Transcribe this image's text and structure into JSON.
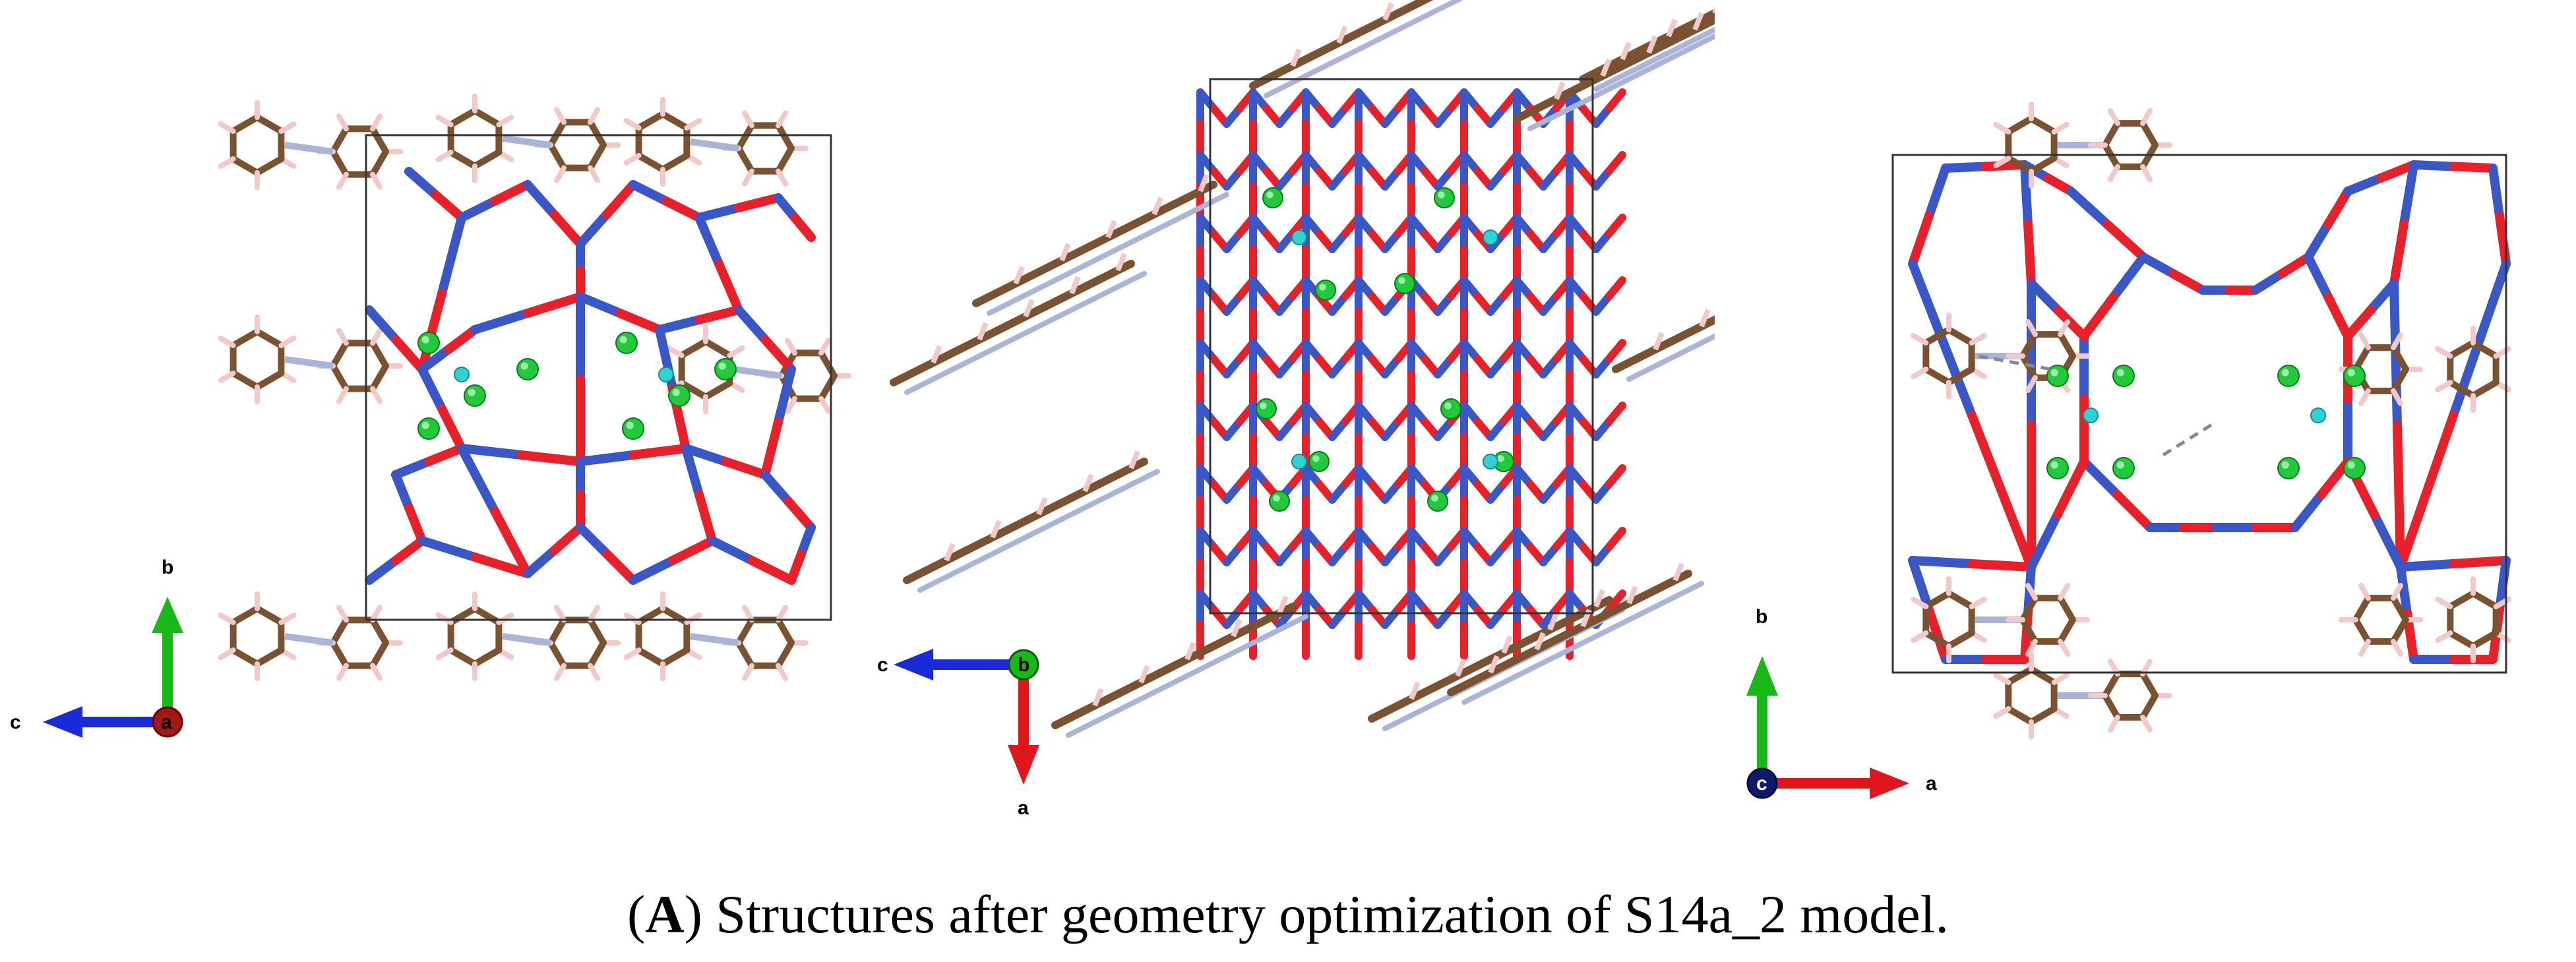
{
  "figure": {
    "caption_label": "A",
    "caption_text": "Structures after geometry optimization of S14a_2 model."
  },
  "panels": [
    {
      "id": "panel-1",
      "axes": {
        "up": "b",
        "left": "c",
        "center": "a"
      }
    },
    {
      "id": "panel-2",
      "axes": {
        "left": "c",
        "down": "a",
        "center": "b"
      }
    },
    {
      "id": "panel-3",
      "axes": {
        "up": "b",
        "right": "a",
        "center": "c"
      }
    }
  ],
  "colors": {
    "oxygen": "#e8202a",
    "aluminum": "#3a57c8",
    "silicon_ball": "#22c93a",
    "cation": "#2fd3d3",
    "carbon": "#7a5230",
    "hydrogen": "#f2c8c8",
    "nitrogen": "#aab4d8",
    "axis_a": "#e0161c",
    "axis_b": "#18b818",
    "axis_c": "#1a2ad8",
    "cell": "#333333"
  }
}
